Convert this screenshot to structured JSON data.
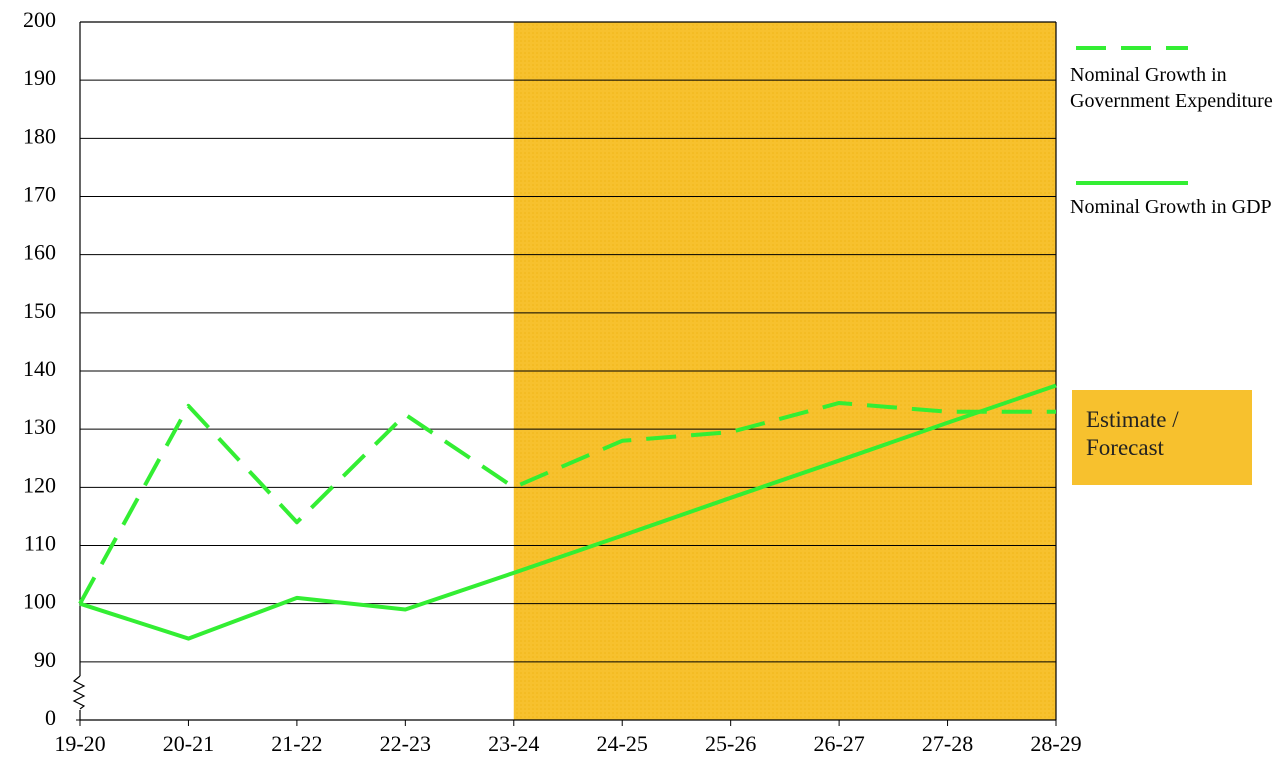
{
  "chart_data": {
    "type": "line",
    "categories": [
      "19-20",
      "20-21",
      "21-22",
      "22-23",
      "23-24",
      "24-25",
      "25-26",
      "26-27",
      "27-28",
      "28-29"
    ],
    "series": [
      {
        "name": "Nominal Growth in Government Expenditure",
        "color": "#33ee33",
        "dash": true,
        "values": [
          100,
          134,
          114,
          132.5,
          120,
          128,
          129.5,
          134.5,
          133,
          133
        ]
      },
      {
        "name": "Nominal Growth in GDP",
        "color": "#33ee33",
        "dash": false,
        "values": [
          100,
          94,
          101,
          99,
          105.3,
          111.7,
          118.2,
          124.6,
          131.1,
          137.5
        ]
      }
    ],
    "ylim": [
      0,
      200
    ],
    "axis_break": [
      0,
      90
    ],
    "yticks": [
      0,
      90,
      100,
      110,
      120,
      130,
      140,
      150,
      160,
      170,
      180,
      190,
      200
    ],
    "grid": true,
    "shaded_region": {
      "from": "23-24",
      "to": "28-29",
      "color": "#f7c12e"
    },
    "annotation": "Estimate / Forecast"
  }
}
